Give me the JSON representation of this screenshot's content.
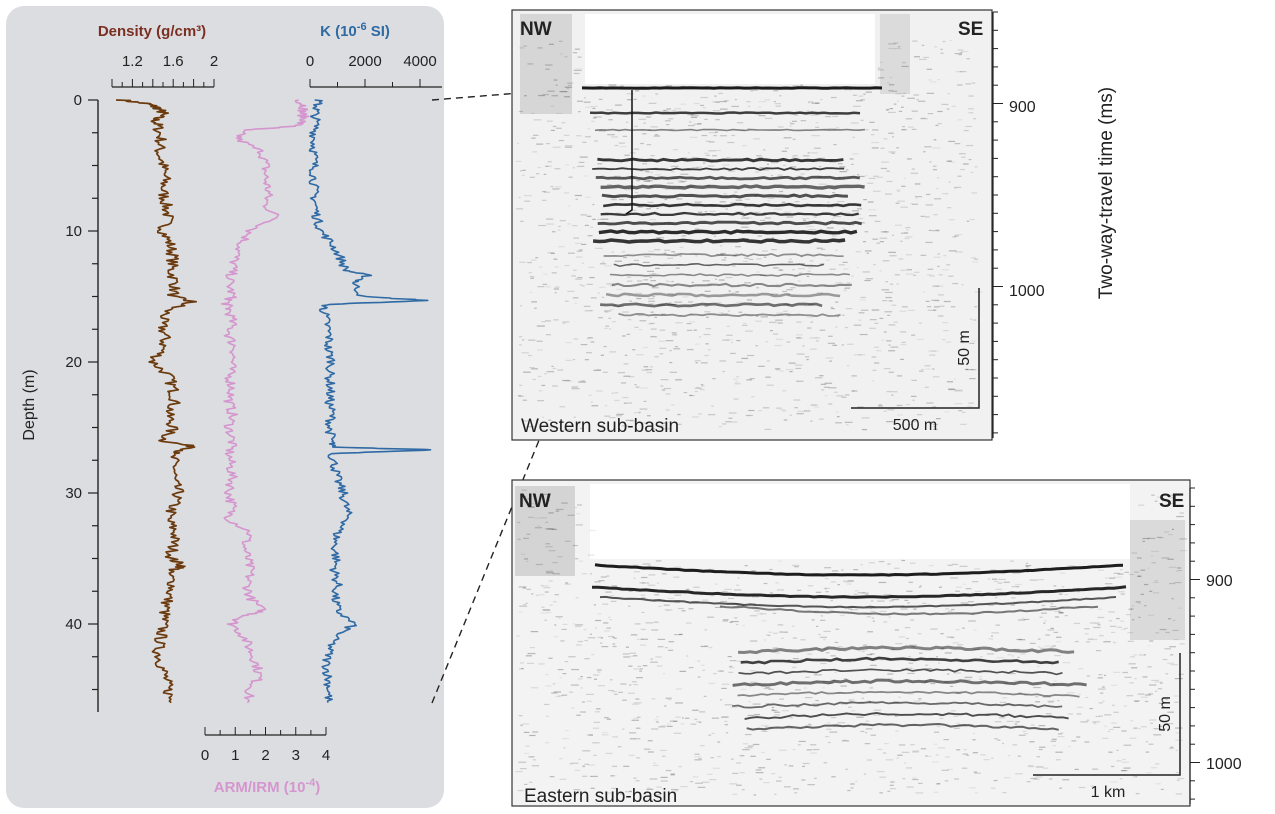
{
  "panels": {
    "logs": {
      "density_title": "Density (g/cm³)",
      "k_title_prefix": "K (10",
      "k_title_sup": "-6",
      "k_title_suffix": " SI)",
      "arm_title_prefix": "ARM/IRM (10",
      "arm_title_sup": "-4",
      "arm_title_suffix": ")",
      "depth_label": "Depth (m)"
    },
    "western": {
      "label": "Western sub-basin",
      "nw": "NW",
      "se": "SE",
      "scale_h": "500 m",
      "scale_v": "50 m",
      "twt_ticks": [
        "900",
        "1000"
      ]
    },
    "eastern": {
      "label": "Eastern sub-basin",
      "nw": "NW",
      "se": "SE",
      "scale_h": "1 km",
      "scale_v": "50 m",
      "twt_ticks": [
        "900",
        "1000"
      ]
    },
    "twt_label": "Two-way-travel time (ms)"
  },
  "colors": {
    "density": "#6b3a0e",
    "arm": "#d596cf",
    "k": "#2f6aa5",
    "density_title": "#7a2f22",
    "k_title": "#2f6aa5",
    "arm_title": "#d596cf",
    "panel_bg": "#dcdde0"
  },
  "chart_data": {
    "type": "line",
    "depth_axis": {
      "label": "Depth (m)",
      "range": [
        0,
        46
      ],
      "ticks": [
        0,
        10,
        20,
        30,
        40
      ]
    },
    "density_axis": {
      "label": "Density (g/cm³)",
      "range": [
        1.0,
        2.0
      ],
      "ticks": [
        "1.2",
        "1.6",
        "2"
      ],
      "tick_values": [
        1.2,
        1.6,
        2.0
      ]
    },
    "k_axis": {
      "label": "K (10^-6 SI)",
      "range": [
        0,
        5000
      ],
      "ticks": [
        "0",
        "2000",
        "4000"
      ],
      "tick_values": [
        0,
        2000,
        4000
      ]
    },
    "arm_axis": {
      "label": "ARM/IRM (10^-4)",
      "range": [
        0,
        4
      ],
      "ticks": [
        "0",
        "1",
        "2",
        "3",
        "4"
      ],
      "tick_values": [
        0,
        1,
        2,
        3,
        4
      ]
    },
    "series": [
      {
        "name": "Density",
        "depth": [
          0.0,
          0.3,
          0.6,
          1.0,
          1.5,
          2.0,
          3.0,
          4.0,
          5.0,
          6.0,
          7.0,
          8.0,
          9.0,
          10.0,
          11.0,
          12.0,
          13.0,
          14.0,
          15.0,
          15.4,
          16.0,
          17.0,
          18.0,
          19.0,
          20.0,
          21.0,
          22.0,
          23.0,
          24.0,
          25.0,
          26.0,
          26.5,
          27.0,
          28.0,
          29.0,
          30.0,
          31.0,
          32.0,
          33.0,
          34.0,
          35.0,
          35.6,
          36.0,
          37.0,
          38.0,
          39.0,
          40.0,
          41.0,
          42.0,
          43.0,
          44.0,
          45.0,
          46.0
        ],
        "values": [
          1.1,
          1.35,
          1.45,
          1.5,
          1.42,
          1.45,
          1.48,
          1.46,
          1.5,
          1.52,
          1.5,
          1.53,
          1.55,
          1.5,
          1.57,
          1.6,
          1.58,
          1.62,
          1.6,
          1.78,
          1.55,
          1.48,
          1.52,
          1.5,
          1.4,
          1.55,
          1.6,
          1.62,
          1.55,
          1.6,
          1.5,
          1.82,
          1.58,
          1.62,
          1.6,
          1.65,
          1.6,
          1.55,
          1.62,
          1.6,
          1.58,
          1.7,
          1.55,
          1.6,
          1.55,
          1.52,
          1.5,
          1.48,
          1.45,
          1.48,
          1.52,
          1.55,
          1.58
        ]
      },
      {
        "name": "ARM/IRM",
        "depth": [
          0.0,
          0.5,
          1.0,
          1.5,
          2.0,
          2.3,
          3.0,
          4.0,
          5.0,
          6.0,
          7.0,
          8.0,
          9.0,
          10.0,
          11.0,
          12.0,
          13.0,
          14.0,
          15.0,
          15.5,
          16.0,
          17.0,
          18.0,
          19.0,
          20.0,
          21.0,
          22.0,
          23.0,
          24.0,
          25.0,
          26.0,
          27.0,
          28.0,
          29.0,
          30.0,
          31.0,
          32.0,
          33.0,
          34.0,
          35.0,
          36.0,
          37.0,
          38.0,
          39.0,
          39.5,
          40.0,
          41.0,
          42.0,
          43.0,
          44.0,
          45.0,
          46.0
        ],
        "values": [
          3.1,
          3.3,
          3.2,
          3.3,
          3.0,
          1.2,
          1.1,
          1.9,
          2.0,
          2.0,
          2.1,
          2.0,
          2.4,
          1.5,
          1.2,
          1.0,
          0.9,
          0.8,
          0.9,
          0.7,
          0.8,
          0.9,
          0.8,
          1.0,
          0.9,
          0.8,
          0.9,
          0.8,
          0.9,
          0.8,
          0.9,
          0.8,
          0.85,
          0.9,
          0.8,
          0.9,
          0.8,
          1.5,
          1.3,
          1.4,
          1.5,
          1.4,
          1.5,
          1.9,
          1.2,
          0.9,
          1.3,
          1.5,
          1.7,
          1.8,
          1.5,
          1.4
        ]
      },
      {
        "name": "K",
        "depth": [
          0.0,
          0.5,
          1.0,
          2.0,
          3.0,
          4.0,
          5.0,
          6.0,
          7.0,
          8.0,
          9.0,
          10.0,
          11.0,
          12.0,
          13.0,
          13.4,
          14.0,
          15.0,
          15.3,
          15.6,
          16.0,
          17.0,
          18.0,
          19.0,
          20.0,
          21.0,
          22.0,
          23.0,
          24.0,
          25.0,
          26.0,
          26.5,
          26.7,
          27.0,
          28.0,
          29.0,
          30.0,
          31.0,
          32.0,
          33.0,
          34.0,
          35.0,
          36.0,
          37.0,
          38.0,
          39.0,
          40.0,
          41.0,
          42.0,
          43.0,
          44.0,
          45.0,
          46.0
        ],
        "values": [
          300,
          250,
          200,
          200,
          150,
          150,
          150,
          150,
          150,
          200,
          250,
          400,
          800,
          1100,
          1300,
          2100,
          1600,
          1900,
          4300,
          600,
          500,
          600,
          700,
          650,
          800,
          700,
          750,
          700,
          800,
          700,
          800,
          750,
          4500,
          800,
          900,
          1000,
          1200,
          1300,
          1400,
          1000,
          900,
          950,
          900,
          1000,
          900,
          1000,
          1600,
          900,
          700,
          600,
          650,
          700,
          650
        ]
      }
    ]
  }
}
